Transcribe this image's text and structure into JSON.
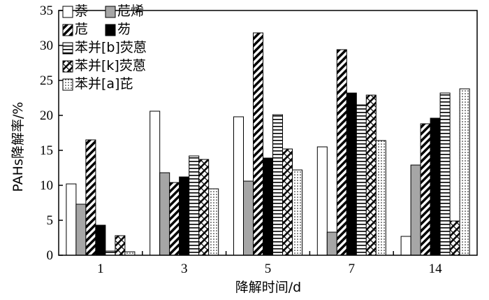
{
  "chart_data": {
    "type": "bar",
    "xlabel": "降解时间/d",
    "ylabel": "PAHs降解率/%",
    "categories": [
      "1",
      "3",
      "5",
      "7",
      "14"
    ],
    "ylim": [
      0,
      35
    ],
    "yticks": [
      "0",
      "5",
      "10",
      "15",
      "20",
      "25",
      "30",
      "35"
    ],
    "grid": false,
    "legend_position": "top-left",
    "series": [
      {
        "name": "萘",
        "fill": "white",
        "values": [
          10.2,
          20.6,
          19.8,
          15.5,
          2.7
        ]
      },
      {
        "name": "苊烯",
        "fill": "gray",
        "values": [
          7.3,
          11.8,
          10.6,
          3.3,
          12.9
        ]
      },
      {
        "name": "苊",
        "fill": "diagonal",
        "values": [
          16.5,
          10.4,
          31.8,
          29.4,
          18.8
        ]
      },
      {
        "name": "芴",
        "fill": "black",
        "values": [
          4.3,
          11.2,
          13.9,
          23.2,
          19.6
        ]
      },
      {
        "name": "苯并[b]荧蒽",
        "fill": "horizontal",
        "values": [
          0.6,
          14.2,
          20.1,
          21.5,
          23.2
        ]
      },
      {
        "name": "苯并[k]荧蒽",
        "fill": "crossdiag",
        "values": [
          2.8,
          13.7,
          15.2,
          22.9,
          4.9
        ]
      },
      {
        "name": "苯并[a]芘",
        "fill": "dots",
        "values": [
          0.5,
          9.5,
          12.2,
          16.4,
          23.8
        ]
      }
    ]
  }
}
